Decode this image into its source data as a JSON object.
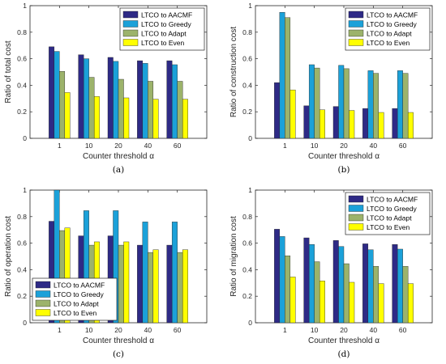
{
  "colors": [
    "#2e2a86",
    "#1ba1d9",
    "#9cb36b",
    "#ffff00"
  ],
  "chart_data": [
    {
      "type": "bar",
      "caption": "(a)",
      "categories": [
        "1",
        "10",
        "20",
        "40",
        "60"
      ],
      "xlabel": "Counter threshold α",
      "ylabel": "Ratio of total cost",
      "ylim": [
        0,
        1
      ],
      "yticks": [
        "0",
        "0.2",
        "0.4",
        "0.6",
        "0.8",
        "1"
      ],
      "legend": "top-right",
      "series": [
        {
          "name": "LTCO to AACMF",
          "values": [
            0.69,
            0.63,
            0.61,
            0.585,
            0.585
          ]
        },
        {
          "name": "LTCO to Greedy",
          "values": [
            0.655,
            0.6,
            0.58,
            0.565,
            0.555
          ]
        },
        {
          "name": "LTCO to Adapt",
          "values": [
            0.505,
            0.46,
            0.445,
            0.43,
            0.43
          ]
        },
        {
          "name": "LTCO to Even",
          "values": [
            0.345,
            0.315,
            0.305,
            0.295,
            0.295
          ]
        }
      ]
    },
    {
      "type": "bar",
      "caption": "(b)",
      "categories": [
        "1",
        "10",
        "20",
        "40",
        "60"
      ],
      "xlabel": "Counter threshold α",
      "ylabel": "Ratio of construction cost",
      "ylim": [
        0,
        1
      ],
      "yticks": [
        "0",
        "0.2",
        "0.4",
        "0.6",
        "0.8",
        "1"
      ],
      "legend": "top-right",
      "series": [
        {
          "name": "LTCO to AACMF",
          "values": [
            0.42,
            0.245,
            0.24,
            0.225,
            0.225
          ]
        },
        {
          "name": "LTCO to Greedy",
          "values": [
            0.95,
            0.555,
            0.55,
            0.51,
            0.51
          ]
        },
        {
          "name": "LTCO to Adapt",
          "values": [
            0.91,
            0.53,
            0.525,
            0.49,
            0.49
          ]
        },
        {
          "name": "LTCO to Even",
          "values": [
            0.365,
            0.215,
            0.21,
            0.195,
            0.195
          ]
        }
      ]
    },
    {
      "type": "bar",
      "caption": "(c)",
      "categories": [
        "1",
        "10",
        "20",
        "40",
        "60"
      ],
      "xlabel": "Counter threshold α",
      "ylabel": "Ratio of operation cost",
      "ylim": [
        0,
        1
      ],
      "yticks": [
        "0",
        "0.2",
        "0.4",
        "0.6",
        "0.8",
        "1"
      ],
      "legend": "bottom-left",
      "series": [
        {
          "name": "LTCO to AACMF",
          "values": [
            0.765,
            0.655,
            0.655,
            0.585,
            0.585
          ]
        },
        {
          "name": "LTCO to Greedy",
          "values": [
            1.0,
            0.845,
            0.845,
            0.76,
            0.76
          ]
        },
        {
          "name": "LTCO to Adapt",
          "values": [
            0.695,
            0.585,
            0.585,
            0.53,
            0.53
          ]
        },
        {
          "name": "LTCO to Even",
          "values": [
            0.715,
            0.61,
            0.61,
            0.55,
            0.55
          ]
        }
      ]
    },
    {
      "type": "bar",
      "caption": "(d)",
      "categories": [
        "1",
        "10",
        "20",
        "40",
        "60"
      ],
      "xlabel": "Counter threshold α",
      "ylabel": "Ratio of migration cost",
      "ylim": [
        0,
        1
      ],
      "yticks": [
        "0",
        "0.2",
        "0.4",
        "0.6",
        "0.8",
        "1"
      ],
      "legend": "top-right",
      "series": [
        {
          "name": "LTCO to AACMF",
          "values": [
            0.705,
            0.64,
            0.62,
            0.595,
            0.59
          ]
        },
        {
          "name": "LTCO to Greedy",
          "values": [
            0.65,
            0.59,
            0.575,
            0.55,
            0.555
          ]
        },
        {
          "name": "LTCO to Adapt",
          "values": [
            0.505,
            0.46,
            0.445,
            0.425,
            0.425
          ]
        },
        {
          "name": "LTCO to Even",
          "values": [
            0.345,
            0.315,
            0.305,
            0.295,
            0.295
          ]
        }
      ]
    }
  ]
}
